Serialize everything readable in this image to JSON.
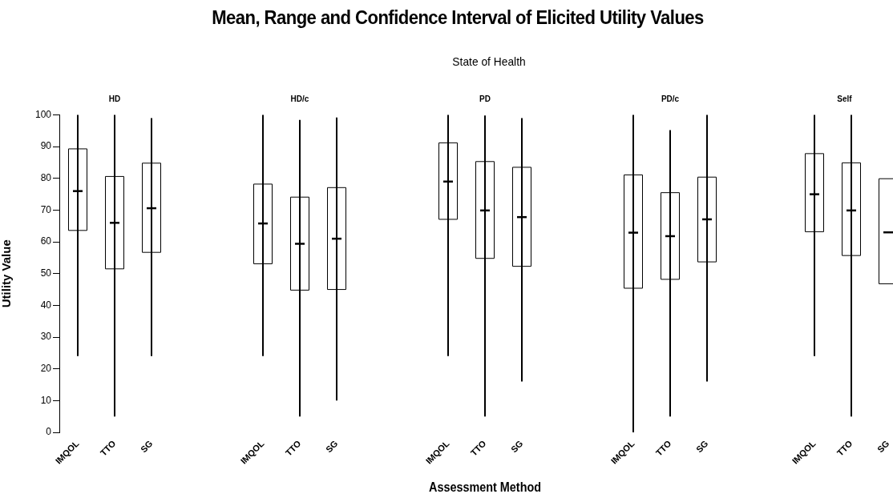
{
  "chart_data": [
    {
      "type": "box",
      "title": "HD",
      "ylabel": "Utility Value",
      "annotations": [
        "Mean, Range and Confidence Interval of Elicited Utility Values",
        "State of Health"
      ],
      "categories": [
        "IMQOL",
        "TTO",
        "SG"
      ],
      "color": "#000000",
      "ylim": [
        0,
        100
      ],
      "yticks": [
        0,
        10,
        20,
        30,
        40,
        50,
        60,
        70,
        80,
        90,
        100
      ],
      "boxes": [
        {
          "low": 24,
          "q1": 63.6,
          "mean": 76,
          "q3": 89.3,
          "high": 100
        },
        {
          "low": 5,
          "q1": 51.5,
          "mean": 66,
          "q3": 80.6,
          "high": 100
        },
        {
          "low": 24,
          "q1": 56.7,
          "mean": 70.6,
          "q3": 84.8,
          "high": 99
        }
      ]
    },
    {
      "type": "box",
      "title": "HD/c",
      "categories": [
        "IMQOL",
        "TTO",
        "SG"
      ],
      "color": "#000000",
      "ylim": [
        0,
        100
      ],
      "tick_labels": "x",
      "boxes": [
        {
          "low": 24,
          "q1": 53.1,
          "mean": 65.8,
          "q3": 78.2,
          "high": 100
        },
        {
          "low": 5,
          "q1": 44.8,
          "mean": 59.4,
          "q3": 74.1,
          "high": 98.4
        },
        {
          "low": 10,
          "q1": 45,
          "mean": 61,
          "q3": 77.1,
          "high": 99.2
        }
      ]
    },
    {
      "type": "box",
      "title": "PD",
      "xlabel": "Assessment Method",
      "categories": [
        "IMQOL",
        "TTO",
        "SG"
      ],
      "color": "#000000",
      "ylim": [
        0,
        100
      ],
      "tick_labels": "x",
      "boxes": [
        {
          "low": 24,
          "q1": 67.1,
          "mean": 79,
          "q3": 91.2,
          "high": 100
        },
        {
          "low": 5,
          "q1": 54.8,
          "mean": 69.9,
          "q3": 85.3,
          "high": 99.8
        },
        {
          "low": 16,
          "q1": 52.3,
          "mean": 67.8,
          "q3": 83.5,
          "high": 99
        }
      ]
    },
    {
      "type": "box",
      "title": "PD/c",
      "categories": [
        "IMQOL",
        "TTO",
        "SG"
      ],
      "color": "#000000",
      "ylim": [
        0,
        100
      ],
      "tick_labels": "x",
      "boxes": [
        {
          "low": 0,
          "q1": 45.4,
          "mean": 62.9,
          "q3": 81.1,
          "high": 100
        },
        {
          "low": 5,
          "q1": 48.2,
          "mean": 61.8,
          "q3": 75.5,
          "high": 95.2
        },
        {
          "low": 16,
          "q1": 53.7,
          "mean": 67.1,
          "q3": 80.4,
          "high": 100
        }
      ]
    },
    {
      "type": "box",
      "title": "Self",
      "categories": [
        "IMQOL",
        "TTO",
        "SG"
      ],
      "color": "#000000",
      "ylim": [
        0,
        100
      ],
      "tick_labels": "x",
      "boxes": [
        {
          "low": 24,
          "q1": 63.2,
          "mean": 75,
          "q3": 87.8,
          "high": 100
        },
        {
          "low": 5,
          "q1": 55.7,
          "mean": 69.9,
          "q3": 84.9,
          "high": 100
        },
        {
          "low": null,
          "q1": 46.8,
          "mean": 63,
          "q3": 79.9,
          "high": null
        }
      ]
    }
  ]
}
